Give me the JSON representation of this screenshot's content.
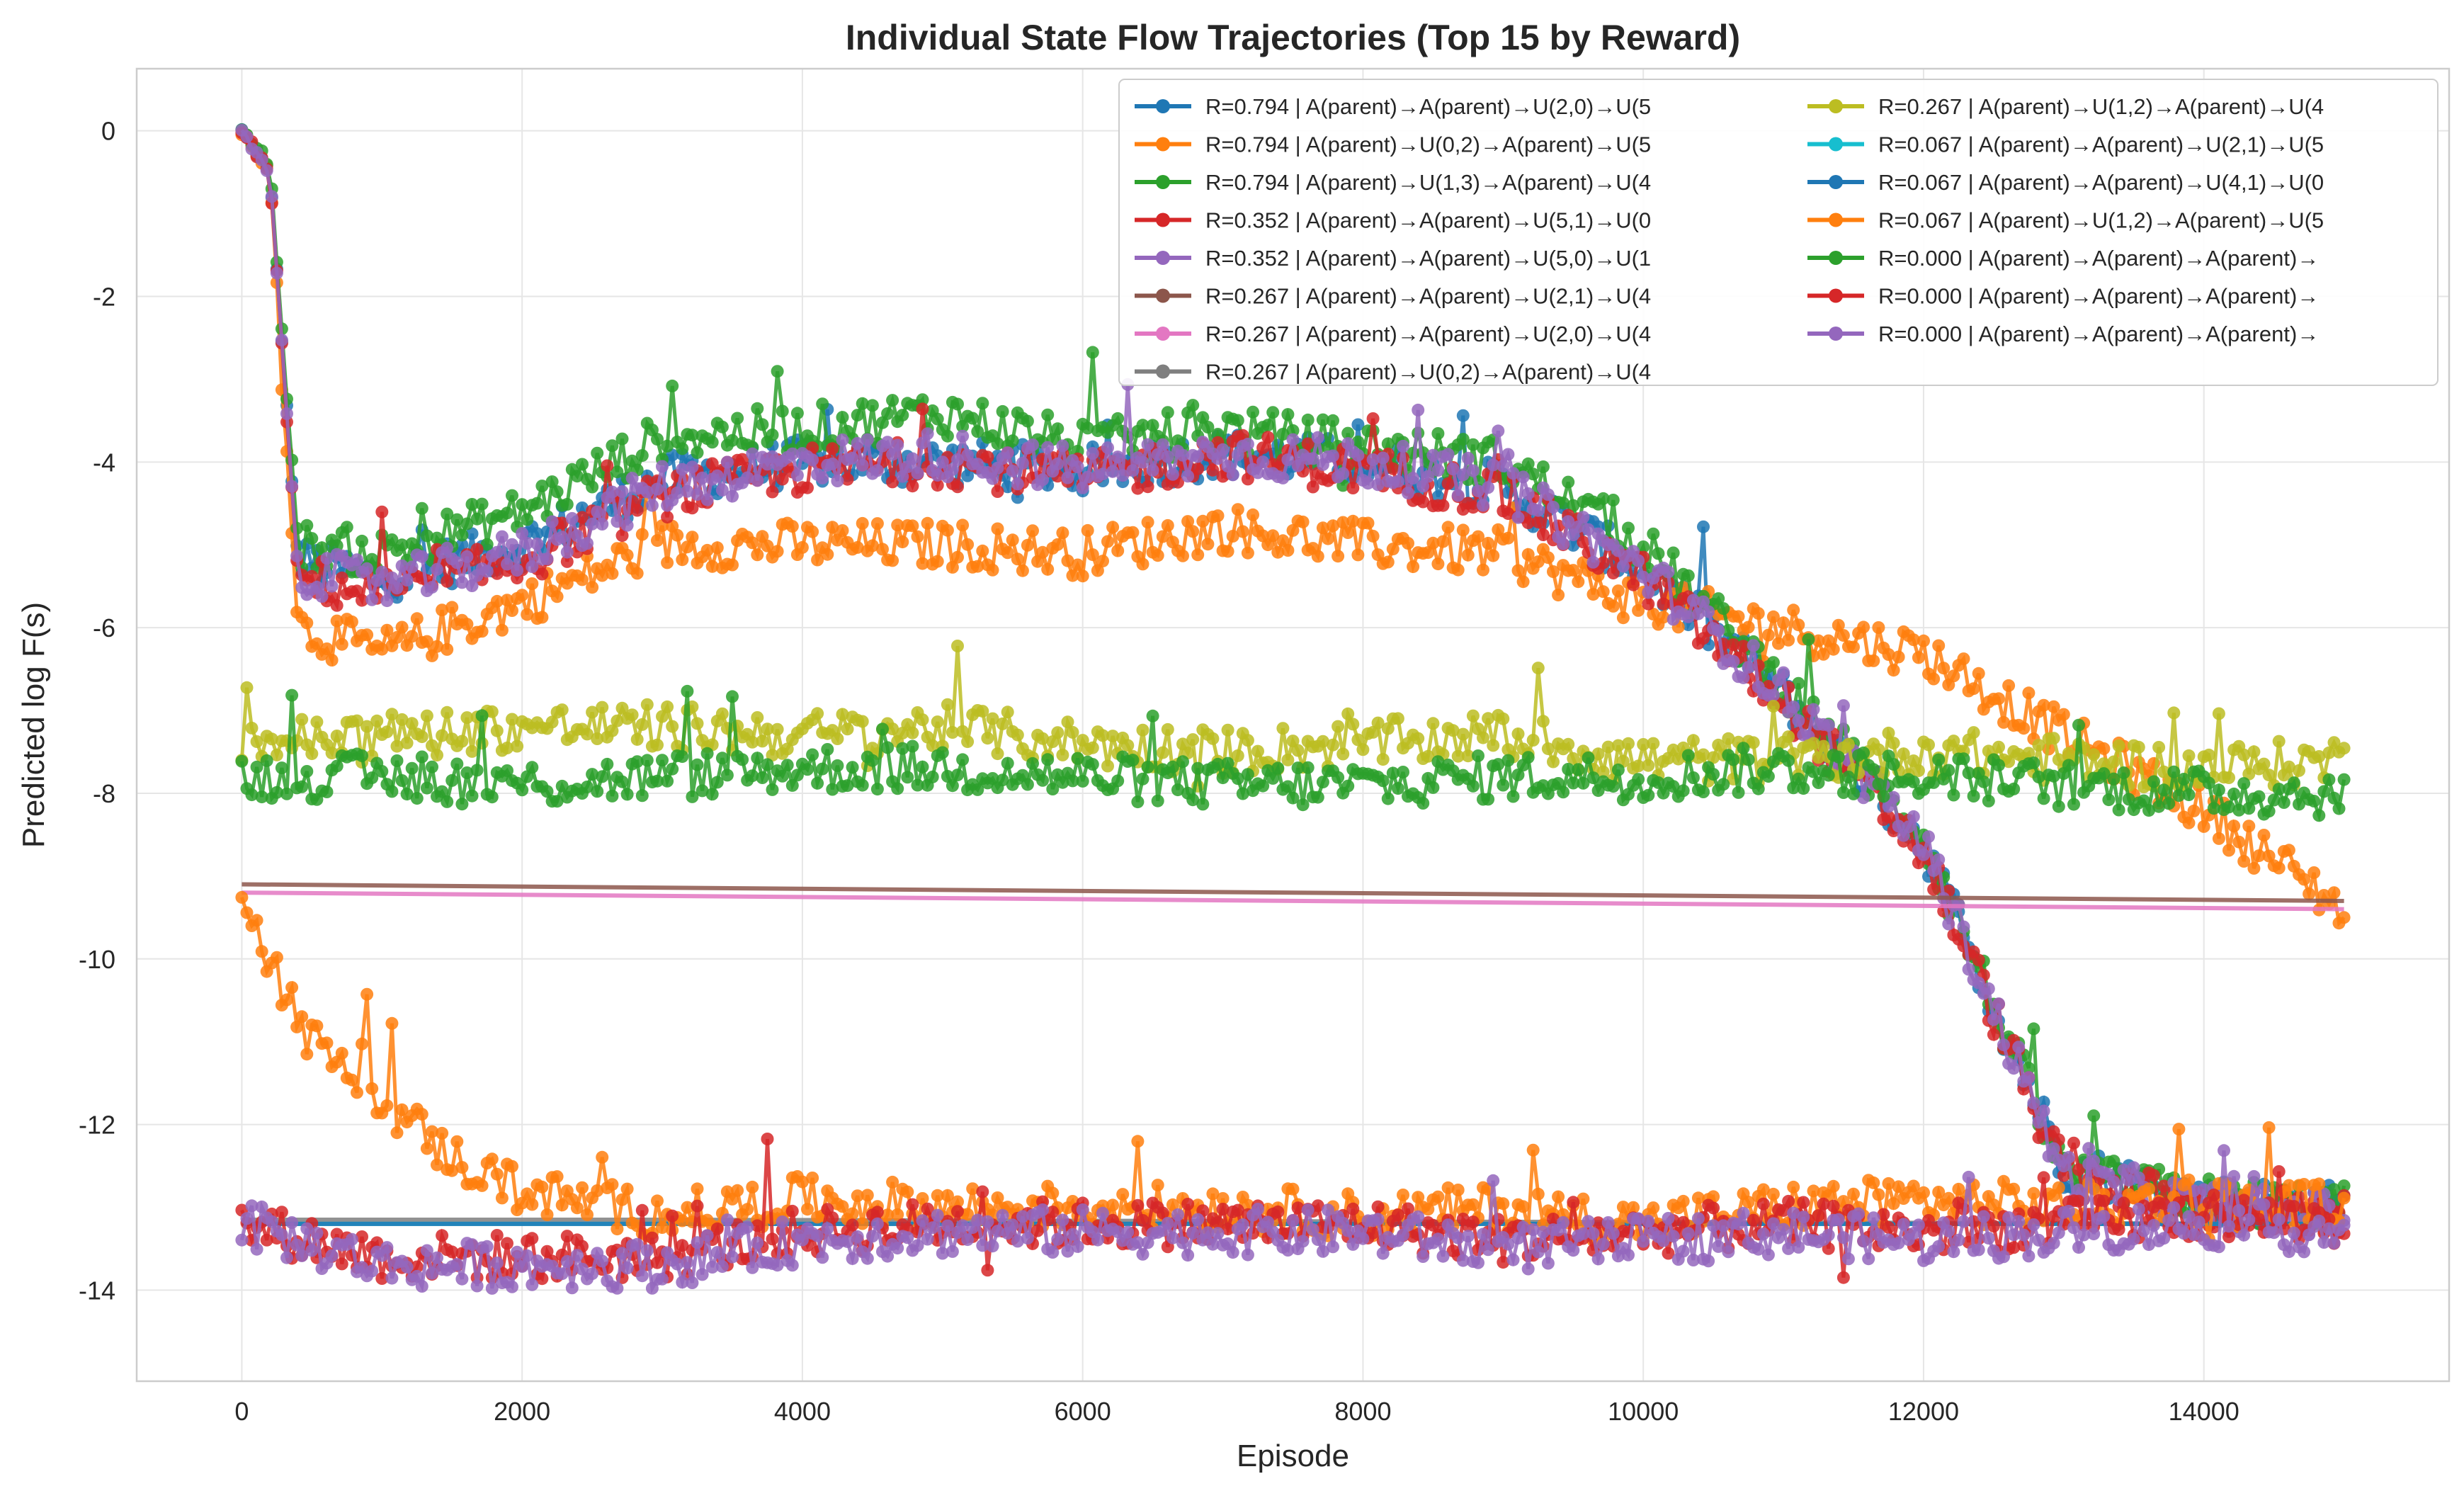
{
  "chart_data": {
    "type": "line",
    "title": "Individual State Flow Trajectories (Top 15 by Reward)",
    "xlabel": "Episode",
    "ylabel": "Predicted log F(s)",
    "xlim": [
      -750,
      15750
    ],
    "ylim": [
      -15.1,
      0.75
    ],
    "xticks": [
      0,
      2000,
      4000,
      6000,
      8000,
      10000,
      12000,
      14000
    ],
    "yticks": [
      0,
      -2,
      -4,
      -6,
      -8,
      -10,
      -12,
      -14
    ],
    "grid": true,
    "legend_position": "top-right",
    "legend_columns": 2,
    "series": [
      {
        "name": "R=0.794 | A(parent)→A(parent)→U(2,0)→U(5",
        "color": "#1f77b4",
        "x": [
          0,
          200,
          400,
          1000,
          2000,
          3000,
          4000,
          5000,
          6000,
          7000,
          8000,
          9000,
          10000,
          11000,
          12000,
          13000,
          14000,
          15000
        ],
        "y": [
          0,
          -0.5,
          -5.2,
          -5.4,
          -5.0,
          -4.2,
          -4.0,
          -4.0,
          -4.1,
          -3.9,
          -4.0,
          -4.3,
          -5.3,
          -6.8,
          -8.6,
          -12.5,
          -12.9,
          -13.0
        ]
      },
      {
        "name": "R=0.794 | A(parent)→U(0,2)→A(parent)→U(5",
        "color": "#ff7f0e",
        "x": [
          0,
          200,
          400,
          1000,
          2000,
          3000,
          4000,
          5000,
          6000,
          7000,
          8000,
          9000,
          10000,
          11000,
          12000,
          13000,
          14000,
          15000
        ],
        "y": [
          0,
          -0.5,
          -6.0,
          -6.3,
          -5.7,
          -5.0,
          -5.0,
          -5.0,
          -5.1,
          -4.8,
          -5.0,
          -5.1,
          -5.7,
          -6.0,
          -6.3,
          -7.3,
          -8.2,
          -9.4
        ]
      },
      {
        "name": "R=0.794 | A(parent)→U(1,3)→A(parent)→U(4",
        "color": "#2ca02c",
        "x": [
          0,
          200,
          400,
          1000,
          2000,
          3000,
          4000,
          5000,
          6000,
          7000,
          8000,
          9000,
          10000,
          11000,
          12000,
          13000,
          14000,
          15000
        ],
        "y": [
          0,
          -0.4,
          -5.0,
          -5.1,
          -4.6,
          -3.7,
          -3.6,
          -3.4,
          -3.8,
          -3.6,
          -3.8,
          -4.0,
          -5.0,
          -6.7,
          -8.5,
          -12.6,
          -12.9,
          -13.0
        ]
      },
      {
        "name": "R=0.352 | A(parent)→A(parent)→U(5,1)→U(0",
        "color": "#d62728",
        "x": [
          0,
          200,
          400,
          1000,
          2000,
          3000,
          4000,
          5000,
          6000,
          7000,
          8000,
          9000,
          10000,
          11000,
          12000,
          13000,
          14000,
          15000
        ],
        "y": [
          0,
          -0.5,
          -5.4,
          -5.6,
          -5.2,
          -4.4,
          -4.1,
          -4.0,
          -4.2,
          -3.9,
          -4.1,
          -4.4,
          -5.4,
          -6.9,
          -8.7,
          -12.6,
          -13.0,
          -13.1
        ]
      },
      {
        "name": "R=0.352 | A(parent)→A(parent)→U(5,0)→U(1",
        "color": "#9467bd",
        "x": [
          0,
          200,
          400,
          1000,
          2000,
          3000,
          4000,
          5000,
          6000,
          7000,
          8000,
          9000,
          10000,
          11000,
          12000,
          13000,
          14000,
          15000
        ],
        "y": [
          0,
          -0.5,
          -5.3,
          -5.5,
          -5.1,
          -4.3,
          -4.0,
          -3.9,
          -4.1,
          -3.9,
          -4.0,
          -4.3,
          -5.3,
          -6.8,
          -8.6,
          -12.6,
          -13.0,
          -13.1
        ]
      },
      {
        "name": "R=0.267 | A(parent)→A(parent)→U(2,1)→U(4",
        "color": "#8c564b",
        "x": [
          0,
          15000
        ],
        "y": [
          -9.1,
          -9.3
        ]
      },
      {
        "name": "R=0.267 | A(parent)→A(parent)→U(2,0)→U(4",
        "color": "#e377c2",
        "x": [
          0,
          15000
        ],
        "y": [
          -9.2,
          -9.4
        ]
      },
      {
        "name": "R=0.267 | A(parent)→U(0,2)→A(parent)→U(4",
        "color": "#7f7f7f",
        "x": [
          0,
          3000,
          15000
        ],
        "y": [
          -13.15,
          -13.15,
          -13.2
        ]
      },
      {
        "name": "R=0.267 | A(parent)→U(1,2)→A(parent)→U(4",
        "color": "#bcbd22",
        "x": [
          0,
          1000,
          2000,
          3000,
          4000,
          5000,
          6000,
          7000,
          8000,
          9000,
          10000,
          11000,
          12000,
          13000,
          14000,
          15000
        ],
        "y": [
          -7.4,
          -7.3,
          -7.2,
          -7.2,
          -7.3,
          -7.2,
          -7.4,
          -7.5,
          -7.4,
          -7.3,
          -7.6,
          -7.6,
          -7.5,
          -7.6,
          -7.7,
          -7.6
        ]
      },
      {
        "name": "R=0.067 | A(parent)→A(parent)→U(2,1)→U(5",
        "color": "#17becf",
        "x": [
          0,
          15000
        ],
        "y": [
          -13.2,
          -13.2
        ]
      },
      {
        "name": "R=0.067 | A(parent)→A(parent)→U(4,1)→U(0",
        "color": "#1f77b4",
        "x": [
          0,
          15000
        ],
        "y": [
          -13.2,
          -13.2
        ]
      },
      {
        "name": "R=0.067 | A(parent)→U(1,2)→A(parent)→U(5",
        "color": "#ff7f0e",
        "x": [
          0,
          200,
          500,
          1000,
          1500,
          2000,
          3000,
          4000,
          5000,
          6000,
          7000,
          8000,
          9000,
          10000,
          11000,
          12000,
          13000,
          14000,
          15000
        ],
        "y": [
          -9.0,
          -10.0,
          -11.0,
          -11.7,
          -12.4,
          -12.8,
          -13.1,
          -12.9,
          -13.0,
          -13.0,
          -13.0,
          -13.1,
          -13.0,
          -13.2,
          -13.0,
          -12.9,
          -13.0,
          -12.9,
          -13.0
        ]
      },
      {
        "name": "R=0.000 | A(parent)→A(parent)→A(parent)→",
        "color": "#2ca02c",
        "x": [
          0,
          1000,
          2000,
          3000,
          4000,
          5000,
          6000,
          7000,
          8000,
          9000,
          10000,
          11000,
          12000,
          13000,
          14000,
          15000
        ],
        "y": [
          -7.8,
          -7.8,
          -7.9,
          -7.8,
          -7.7,
          -7.7,
          -7.8,
          -7.9,
          -7.9,
          -7.8,
          -7.8,
          -7.7,
          -7.8,
          -7.9,
          -8.0,
          -8.0
        ]
      },
      {
        "name": "R=0.000 | A(parent)→A(parent)→A(parent)→",
        "color": "#d62728",
        "x": [
          0,
          1000,
          2000,
          3000,
          4000,
          5000,
          6000,
          7000,
          8000,
          9000,
          10000,
          11000,
          12000,
          13000,
          14000,
          15000
        ],
        "y": [
          -13.2,
          -13.6,
          -13.6,
          -13.6,
          -13.3,
          -13.2,
          -13.2,
          -13.2,
          -13.2,
          -13.4,
          -13.3,
          -13.2,
          -13.3,
          -13.2,
          -13.1,
          -13.2
        ]
      },
      {
        "name": "R=0.000 | A(parent)→A(parent)→A(parent)→",
        "color": "#9467bd",
        "x": [
          0,
          1000,
          2000,
          3000,
          4000,
          5000,
          6000,
          7000,
          8000,
          9000,
          10000,
          11000,
          12000,
          13000,
          14000,
          15000
        ],
        "y": [
          -13.2,
          -13.7,
          -13.7,
          -13.7,
          -13.4,
          -13.3,
          -13.3,
          -13.3,
          -13.3,
          -13.5,
          -13.4,
          -13.3,
          -13.4,
          -13.3,
          -13.2,
          -13.3
        ]
      }
    ]
  }
}
